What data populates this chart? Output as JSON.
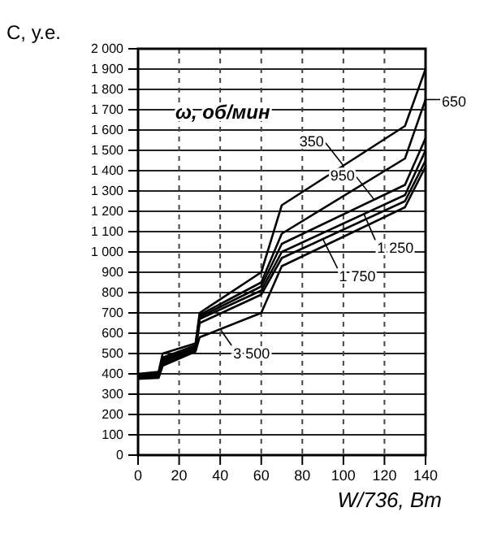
{
  "chart_data": {
    "type": "line",
    "ylabel": "C, у.е.",
    "xlabel": "W/736, Вт",
    "legend_title": "ω, об/мин",
    "xlim": [
      0,
      140
    ],
    "xticks": [
      0,
      20,
      40,
      60,
      80,
      100,
      120,
      140
    ],
    "ylim": [
      0,
      2000
    ],
    "yticks": [
      0,
      100,
      200,
      300,
      400,
      500,
      600,
      700,
      800,
      900,
      {
        "value": 1000,
        "label": "1 000"
      },
      {
        "value": 1100,
        "label": "1 100"
      },
      {
        "value": 1200,
        "label": "1 200"
      },
      {
        "value": 1300,
        "label": "1 300"
      },
      {
        "value": 1400,
        "label": "1 400"
      },
      {
        "value": 1500,
        "label": "1 500"
      },
      {
        "value": 1600,
        "label": "1 600"
      },
      {
        "value": 1700,
        "label": "1 700"
      },
      {
        "value": 1800,
        "label": "1 800"
      },
      {
        "value": 1900,
        "label": "1 900"
      },
      {
        "value": 2000,
        "label": "2 000"
      }
    ],
    "grid": true,
    "legend": "right",
    "marker": "none",
    "line_style": "solid",
    "x": [
      0,
      10,
      12,
      28,
      30,
      60,
      70,
      130,
      140
    ],
    "series": [
      {
        "name": "350",
        "color": "#000000",
        "values": [
          400,
          410,
          500,
          550,
          700,
          900,
          1230,
          1620,
          1900
        ]
      },
      {
        "name": "650",
        "color": "#000000",
        "values": [
          395,
          400,
          480,
          540,
          690,
          850,
          1090,
          1460,
          1750
        ]
      },
      {
        "name": "950",
        "color": "#000000",
        "values": [
          390,
          395,
          470,
          530,
          680,
          830,
          1040,
          1330,
          1560
        ]
      },
      {
        "name": "1 250",
        "color": "#000000",
        "values": [
          385,
          390,
          460,
          525,
          670,
          810,
          1000,
          1280,
          1500
        ]
      },
      {
        "name": "1 750",
        "color": "#000000",
        "values": [
          380,
          385,
          450,
          515,
          650,
          790,
          970,
          1250,
          1450
        ]
      },
      {
        "name": "3 500",
        "color": "#000000",
        "values": [
          375,
          380,
          440,
          510,
          580,
          700,
          930,
          1220,
          1420
        ]
      }
    ]
  }
}
